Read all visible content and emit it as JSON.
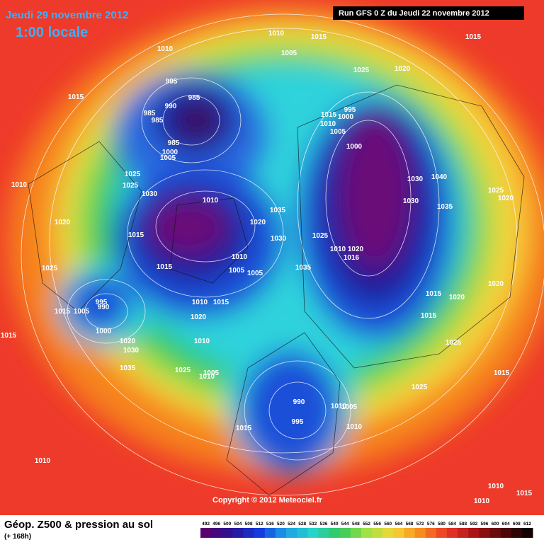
{
  "header": {
    "date": "Jeudi 29 novembre 2012",
    "local_time": "1:00 locale",
    "run": "Run GFS 0 Z du Jeudi 22 novembre 2012"
  },
  "map": {
    "copyright": "Copyright © 2012 Meteociel.fr",
    "isobar_labels": [
      "1010",
      "1015",
      "1005",
      "1010",
      "1015",
      "1020",
      "1025",
      "1015",
      "995",
      "990",
      "985",
      "985",
      "985",
      "985",
      "1000",
      "1005",
      "995",
      "1015",
      "1000",
      "1010",
      "1005",
      "1000",
      "1025",
      "1025",
      "1010",
      "1030",
      "1010",
      "1035",
      "1020",
      "1030",
      "1025",
      "1030",
      "1040",
      "1030",
      "1035",
      "1025",
      "1020",
      "1020",
      "1015",
      "1010",
      "1020",
      "1016",
      "1010",
      "1005",
      "1005",
      "1015",
      "1035",
      "1025",
      "1020",
      "1015",
      "1020",
      "1010",
      "1015",
      "995",
      "990",
      "1015",
      "1005",
      "1015",
      "1020",
      "1000",
      "1020",
      "1030",
      "1010",
      "1015",
      "1025",
      "1035",
      "1025",
      "1005",
      "1010",
      "1015",
      "1025",
      "990",
      "995",
      "1005",
      "1010",
      "1015",
      "1010",
      "1010",
      "1010",
      "1015",
      "1010"
    ]
  },
  "footer": {
    "title": "Géop. Z500 & pression au sol",
    "lead": "(+ 168h)",
    "scale": [
      492,
      496,
      500,
      504,
      508,
      512,
      516,
      520,
      524,
      528,
      532,
      536,
      540,
      544,
      548,
      552,
      556,
      560,
      564,
      568,
      572,
      576,
      580,
      584,
      588,
      592,
      596,
      600,
      604,
      608,
      612
    ]
  }
}
